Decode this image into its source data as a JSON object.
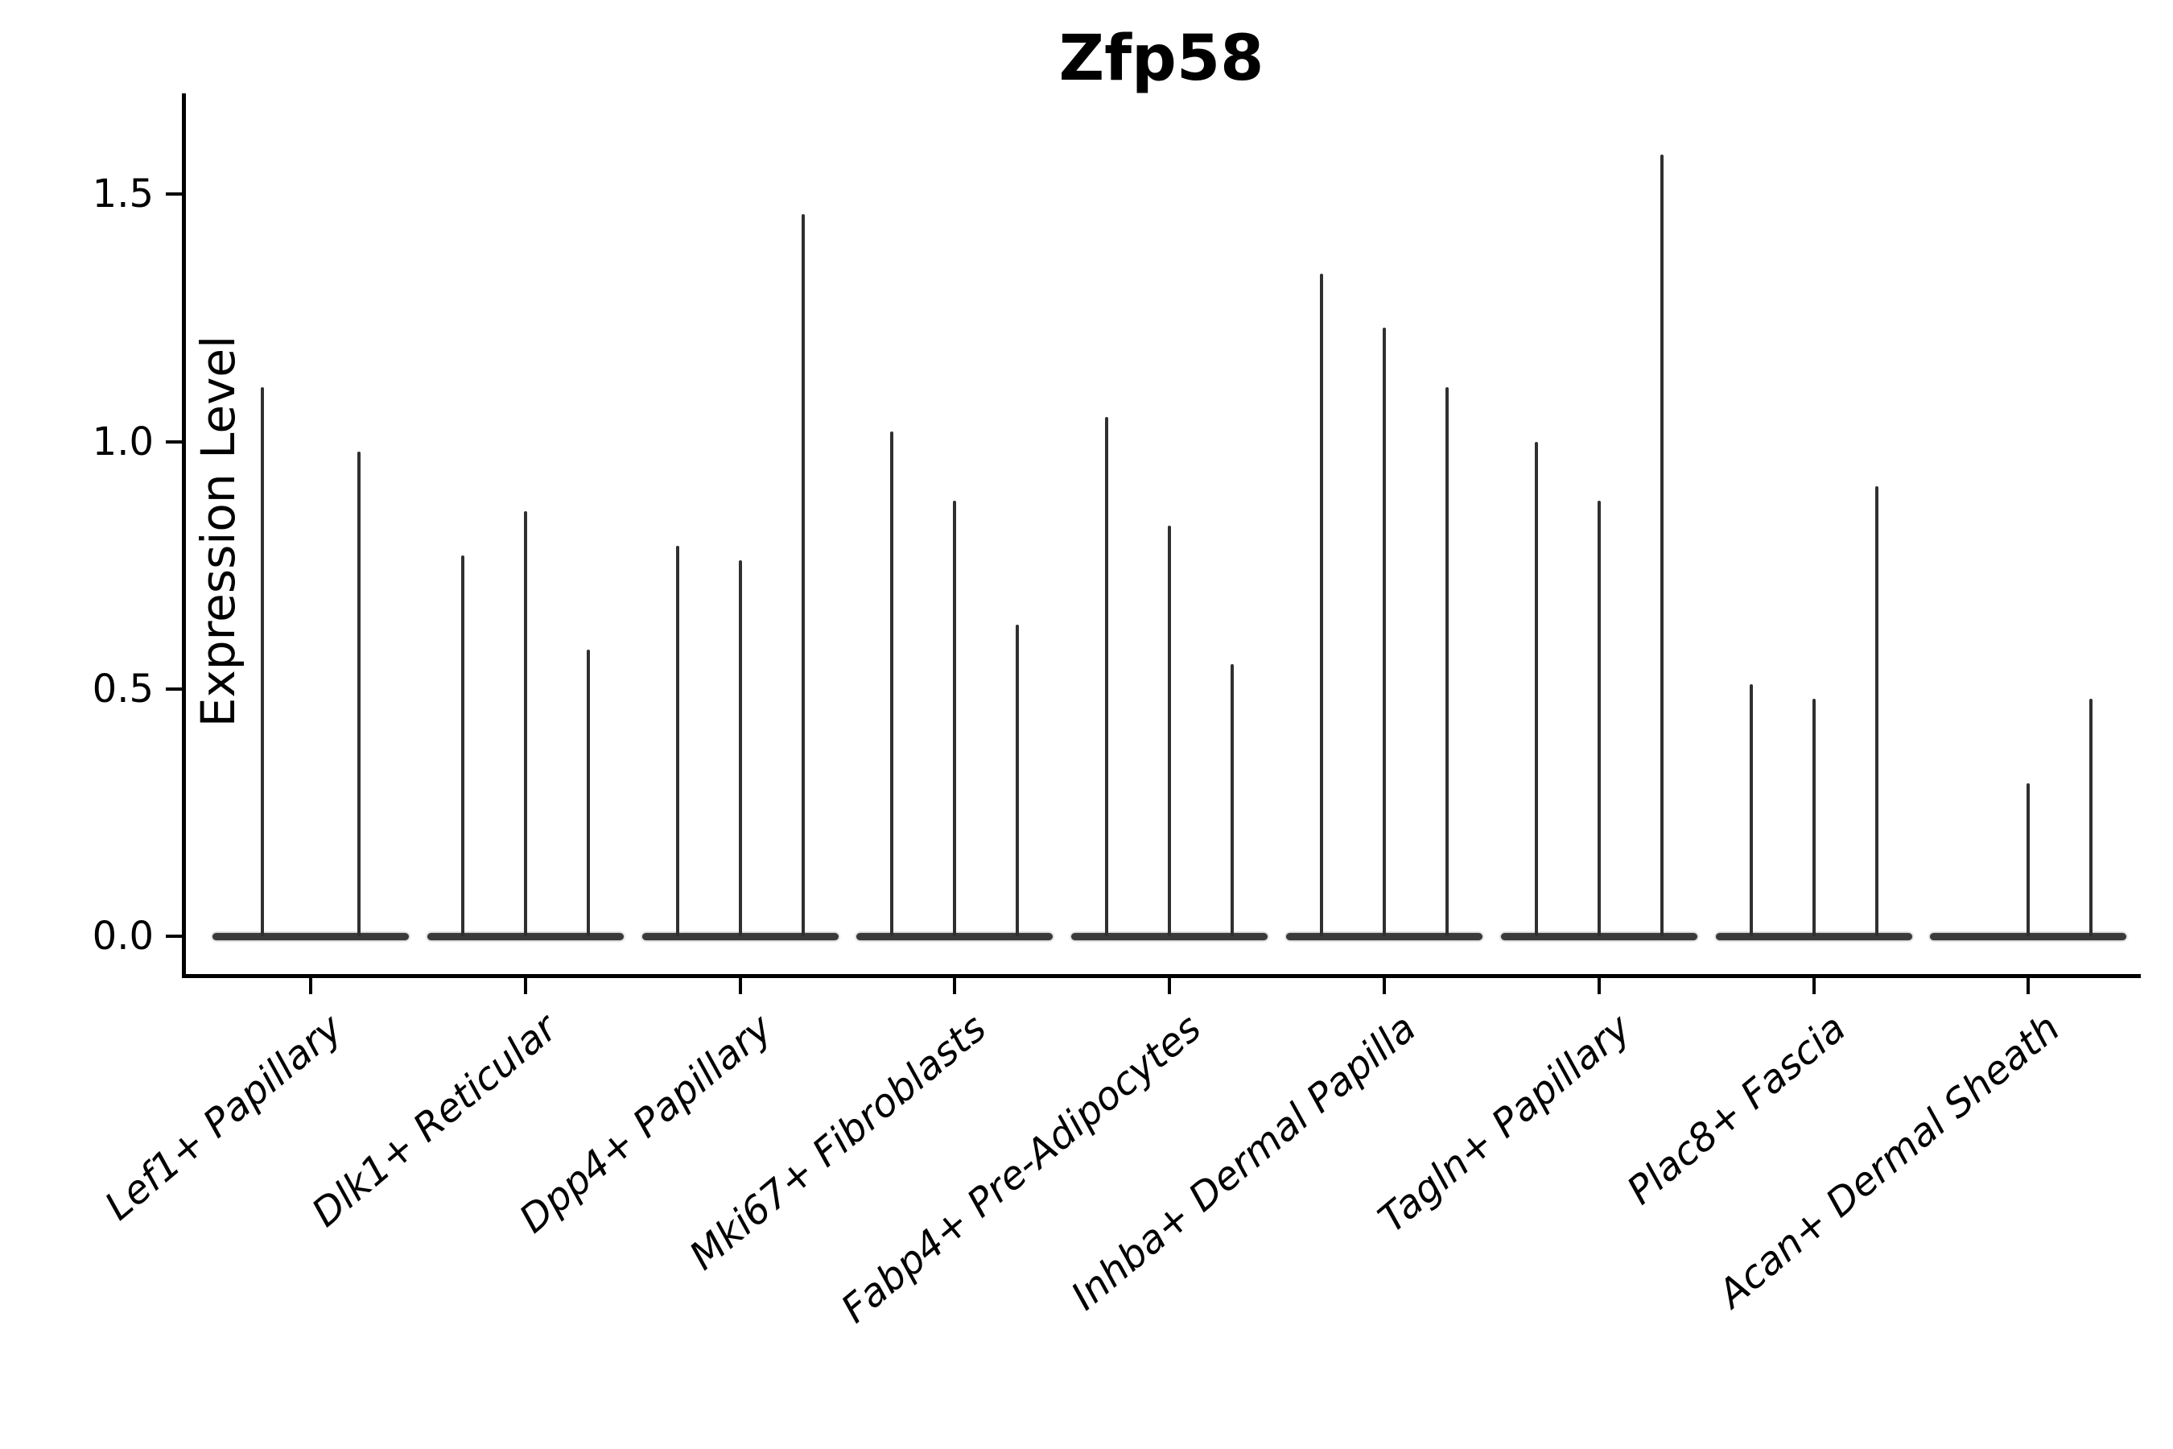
{
  "chart_data": {
    "type": "violin",
    "title": "Zfp58",
    "xlabel": "",
    "ylabel": "Expression Level",
    "ylim": [
      -0.08,
      1.67
    ],
    "yticks": [
      {
        "value": 0.0,
        "label": "0.0"
      },
      {
        "value": 0.5,
        "label": "0.5"
      },
      {
        "value": 1.0,
        "label": "1.0"
      },
      {
        "value": 1.5,
        "label": "1.5"
      }
    ],
    "grid": false,
    "legend": "none",
    "violin_color": "#303030",
    "note": "Each category shows 2-3 thin violins: bodies collapsed at 0 with a thin spike up to the max expression value",
    "categories": [
      {
        "label": "Lef1+ Papillary",
        "violin_maxima": [
          1.11,
          0.98
        ]
      },
      {
        "label": "Dlk1+ Reticular",
        "violin_maxima": [
          0.77,
          0.86,
          0.58
        ]
      },
      {
        "label": "Dpp4+ Papillary",
        "violin_maxima": [
          0.79,
          0.76,
          1.46
        ]
      },
      {
        "label": "Mki67+ Fibroblasts",
        "violin_maxima": [
          1.02,
          0.88,
          0.63
        ]
      },
      {
        "label": "Fabp4+ Pre-Adipocytes",
        "violin_maxima": [
          1.05,
          0.83,
          0.55
        ]
      },
      {
        "label": "Inhba+ Dermal Papilla",
        "violin_maxima": [
          1.34,
          1.23,
          1.11
        ]
      },
      {
        "label": "Tagln+ Papillary",
        "violin_maxima": [
          1.0,
          0.88,
          1.58
        ]
      },
      {
        "label": "Plac8+ Fascia",
        "violin_maxima": [
          0.51,
          0.48,
          0.91
        ]
      },
      {
        "label": "Acan+ Dermal Sheath",
        "violin_maxima": [
          0.0,
          0.31,
          0.48
        ]
      }
    ]
  }
}
